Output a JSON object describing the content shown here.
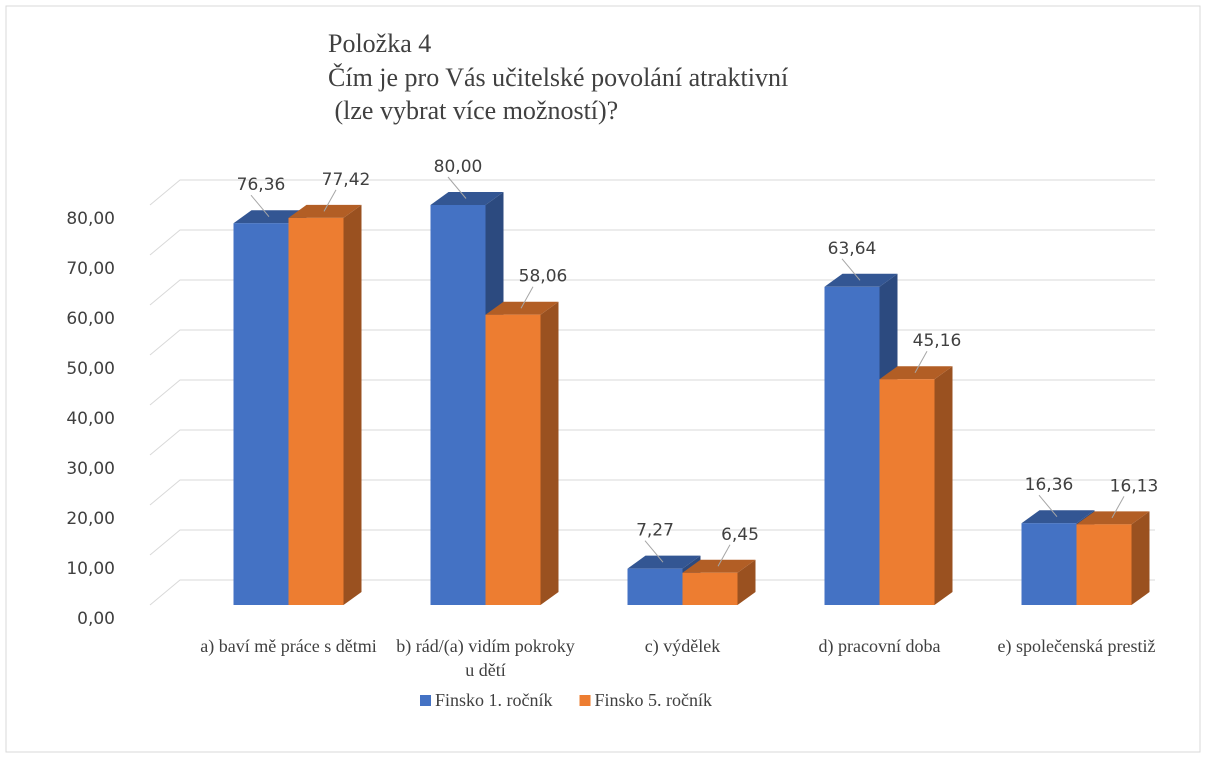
{
  "chart_data": {
    "type": "bar3d",
    "title": [
      "Položka 4",
      "Čím je pro Vás učitelské povolání atraktivní",
      " (lze vybrat více možností)?"
    ],
    "categories": [
      "a) baví mě práce s dětmi",
      "b) rád/(a) vidím pokroky u dětí",
      "c) výdělek",
      "d) pracovní doba",
      "e) společenská prestiž"
    ],
    "series": [
      {
        "name": "Finsko 1. ročník",
        "color": "#4472c4",
        "values": [
          76.36,
          80,
          7.27,
          63.64,
          16.36
        ],
        "value_labels": [
          "76,36",
          "80,00",
          "7,27",
          "63,64",
          "16,36"
        ]
      },
      {
        "name": "Finsko 5. ročník",
        "color": "#ed7d31",
        "values": [
          77.42,
          58.06,
          6.45,
          45.16,
          16.13
        ],
        "value_labels": [
          "77,42",
          "58,06",
          "6,45",
          "45,16",
          "16,13"
        ]
      }
    ],
    "ylim": [
      0,
      80
    ],
    "yticks": [
      {
        "value": 0,
        "label": "0,00"
      },
      {
        "value": 10,
        "label": "10,00"
      },
      {
        "value": 20,
        "label": "20,00"
      },
      {
        "value": 30,
        "label": "30,00"
      },
      {
        "value": 40,
        "label": "40,00"
      },
      {
        "value": 50,
        "label": "50,00"
      },
      {
        "value": 60,
        "label": "60,00"
      },
      {
        "value": 70,
        "label": "70,00"
      },
      {
        "value": 80,
        "label": "80,00"
      }
    ],
    "grid": true,
    "legend": "bottom"
  }
}
